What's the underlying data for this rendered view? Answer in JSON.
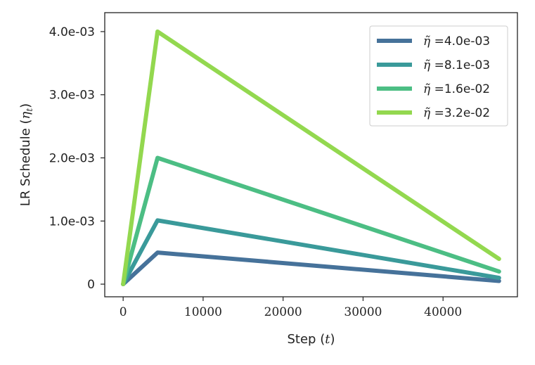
{
  "chart_data": {
    "type": "line",
    "xlabel": {
      "prefix": "Step (",
      "var": "t",
      "suffix": ")"
    },
    "ylabel": {
      "prefix": "LR Schedule (",
      "var": "η",
      "sub": "t",
      "suffix": ")"
    },
    "xlim": [
      -2300,
      49300
    ],
    "ylim": [
      -0.0002,
      0.0043
    ],
    "x_ticks": [
      {
        "value": 0,
        "label": "0"
      },
      {
        "value": 10000,
        "label": "10000"
      },
      {
        "value": 20000,
        "label": "20000"
      },
      {
        "value": 30000,
        "label": "30000"
      },
      {
        "value": 40000,
        "label": "40000"
      }
    ],
    "y_ticks": [
      {
        "value": 0,
        "label": "0"
      },
      {
        "value": 0.001,
        "label": "1.0e-03"
      },
      {
        "value": 0.002,
        "label": "2.0e-03"
      },
      {
        "value": 0.003,
        "label": "3.0e-03"
      },
      {
        "value": 0.004,
        "label": "4.0e-03"
      }
    ],
    "grid": false,
    "legend_position": "top-right",
    "legend_symbol": "η̃",
    "series": [
      {
        "name": "=4.0e-03",
        "color": "#46729a",
        "x": [
          0,
          4300,
          47000
        ],
        "y": [
          0,
          0.0005,
          5e-05
        ]
      },
      {
        "name": "=8.1e-03",
        "color": "#3a9a9a",
        "x": [
          0,
          4300,
          47000
        ],
        "y": [
          0,
          0.00101,
          0.0001
        ]
      },
      {
        "name": "=1.6e-02",
        "color": "#4cbe84",
        "x": [
          0,
          4300,
          47000
        ],
        "y": [
          0,
          0.002,
          0.0002
        ]
      },
      {
        "name": "=3.2e-02",
        "color": "#93d84f",
        "x": [
          0,
          4300,
          47000
        ],
        "y": [
          0,
          0.004,
          0.0004
        ]
      }
    ]
  }
}
